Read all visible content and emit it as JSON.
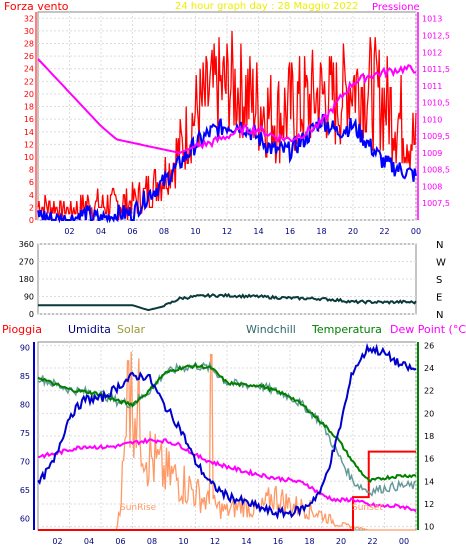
{
  "chart_data": [
    {
      "type": "line",
      "title": "24 hour graph day : 28 Maggio 2022",
      "left_label": "Forza vento",
      "right_label": "Pressione",
      "x_ticks": [
        "02",
        "04",
        "06",
        "08",
        "10",
        "12",
        "14",
        "16",
        "18",
        "20",
        "22",
        "00"
      ],
      "y_ticks": [
        "0",
        "2",
        "4",
        "6",
        "8",
        "10",
        "12",
        "14",
        "16",
        "18",
        "20",
        "22",
        "24",
        "26",
        "28",
        "30",
        "32"
      ],
      "y2_ticks": [
        "1007,5",
        "1008",
        "1008,5",
        "1009",
        "1009,5",
        "1010",
        "1010,5",
        "1011",
        "1011,5",
        "1012",
        "1012,5",
        "1013"
      ],
      "ylim": [
        0,
        33
      ],
      "y2lim": [
        1007,
        1013.2
      ],
      "colors": {
        "gust": "#ff0000",
        "wind": "#0000ff",
        "pressure": "#ff00ff"
      },
      "hours": [
        0,
        1,
        2,
        3,
        4,
        5,
        6,
        7,
        8,
        9,
        10,
        11,
        12,
        13,
        14,
        15,
        16,
        17,
        18,
        19,
        20,
        21,
        22,
        23,
        24
      ],
      "gust_hi": [
        5,
        4,
        3,
        5,
        5,
        5,
        6,
        8,
        11,
        16,
        24,
        28,
        30,
        29,
        26,
        24,
        26,
        27,
        28,
        27,
        30,
        30,
        28,
        24,
        18
      ],
      "gust_lo": [
        0,
        0,
        0,
        0,
        0,
        0,
        0,
        1,
        3,
        6,
        10,
        12,
        13,
        12,
        10,
        9,
        9,
        10,
        12,
        11,
        14,
        12,
        10,
        8,
        6
      ],
      "wind_avg": [
        1,
        0,
        0,
        1,
        0,
        1,
        1,
        4,
        6,
        9,
        12,
        14,
        15,
        15,
        13,
        11,
        11,
        13,
        16,
        14,
        15,
        12,
        9,
        8,
        7
      ],
      "pressure": [
        1011.8,
        1011.3,
        1010.8,
        1010.3,
        1009.8,
        1009.4,
        1009.3,
        1009.2,
        1009.1,
        1009.0,
        1009.2,
        1009.3,
        1009.5,
        1009.7,
        1009.7,
        1009.5,
        1009.4,
        1009.6,
        1009.9,
        1010.5,
        1011.1,
        1011.3,
        1011.4,
        1011.5,
        1011.5
      ]
    },
    {
      "type": "line",
      "title": "",
      "ylabel_right": [
        "N",
        "W",
        "S",
        "E",
        "N"
      ],
      "y_ticks": [
        "0",
        "90",
        "180",
        "270",
        "360"
      ],
      "ylim": [
        0,
        360
      ],
      "colors": {
        "direction": "#0a3a3a"
      },
      "hours": [
        0,
        1,
        2,
        3,
        4,
        5,
        6,
        7,
        8,
        9,
        10,
        11,
        12,
        13,
        14,
        15,
        16,
        17,
        18,
        19,
        20,
        21,
        22,
        23,
        24
      ],
      "direction": [
        45,
        45,
        45,
        45,
        45,
        45,
        45,
        20,
        40,
        80,
        90,
        95,
        95,
        92,
        90,
        85,
        82,
        80,
        78,
        72,
        62,
        62,
        60,
        62,
        60
      ]
    },
    {
      "type": "line",
      "title": "",
      "legend": [
        "Pioggia",
        "Umidita",
        "Solar",
        "Windchill",
        "Temperatura",
        "Dew Point (°C)"
      ],
      "legend_colors": [
        "#ff0000",
        "#000080",
        "#999933",
        "#336666",
        "#008000",
        "#ff00ff"
      ],
      "y_ticks": [
        "60",
        "65",
        "70",
        "75",
        "80",
        "85",
        "90"
      ],
      "y2_ticks": [
        "10",
        "12",
        "14",
        "16",
        "18",
        "20",
        "22",
        "24",
        "26"
      ],
      "ylim": [
        58,
        91
      ],
      "y2lim": [
        9.7,
        26.3
      ],
      "annotations": [
        "SunRise",
        "Sunset"
      ],
      "colors": {
        "humidity": "#0000cc",
        "temperature": "#008000",
        "windchill": "#669999",
        "dewpoint": "#ff00ff",
        "solar": "#ff9966",
        "rain": "#ff0000"
      },
      "hours": [
        0,
        1,
        2,
        3,
        4,
        5,
        6,
        7,
        8,
        9,
        10,
        11,
        12,
        13,
        14,
        15,
        16,
        17,
        18,
        19,
        20,
        21,
        22,
        23,
        24
      ],
      "humidity": [
        66,
        70,
        78,
        81,
        81,
        83,
        85,
        85,
        80,
        76,
        70,
        66,
        64,
        63,
        62,
        61,
        61,
        62,
        65,
        74,
        86,
        90,
        89,
        87,
        86
      ],
      "temperature": [
        23.2,
        22.6,
        22.1,
        21.9,
        21.7,
        21.1,
        20.8,
        21.9,
        23.5,
        24.0,
        24.2,
        24.0,
        22.7,
        22.5,
        22.5,
        22.0,
        21.5,
        20.5,
        19.2,
        17.8,
        15.7,
        14.0,
        14.3,
        14.5,
        14.5
      ],
      "windchill": [
        23.2,
        22.6,
        22.1,
        21.9,
        21.7,
        21.1,
        20.8,
        21.9,
        23.5,
        24.0,
        24.2,
        24.0,
        22.7,
        22.5,
        22.5,
        22.0,
        21.5,
        20.5,
        19.2,
        16.5,
        14.0,
        13.1,
        13.4,
        13.6,
        13.6
      ],
      "dewpoint": [
        16.2,
        16.4,
        16.8,
        17.1,
        17.0,
        17.1,
        17.4,
        17.6,
        17.6,
        17.2,
        16.3,
        15.7,
        15.3,
        14.9,
        14.6,
        14.3,
        14.1,
        13.8,
        12.8,
        12.3,
        12.4,
        11.9,
        11.8,
        11.8,
        11.5
      ],
      "rain": [
        0,
        0,
        0,
        0,
        0,
        0,
        0,
        0,
        0,
        0,
        0,
        0,
        0,
        0,
        0,
        0,
        0,
        0,
        0,
        0,
        4.2,
        10,
        10,
        10,
        10
      ],
      "solar_max": 300,
      "solar": [
        0,
        0,
        0,
        0,
        0,
        0,
        230,
        120,
        90,
        80,
        60,
        40,
        30,
        40,
        30,
        55,
        40,
        35,
        25,
        10,
        5,
        0,
        0,
        0,
        0
      ],
      "x_ticks": [
        "02",
        "04",
        "06",
        "08",
        "10",
        "12",
        "14",
        "16",
        "18",
        "20",
        "22",
        "00"
      ]
    }
  ]
}
